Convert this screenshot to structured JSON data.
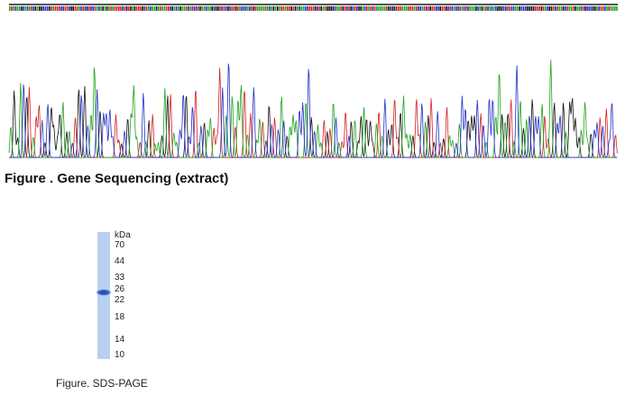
{
  "figure1": {
    "caption": "Figure . Gene Sequencing (extract)"
  },
  "figure2": {
    "unit": "kDa",
    "markers": [
      "70",
      "44",
      "33",
      "26",
      "22",
      "18",
      "14",
      "10"
    ],
    "caption": "Figure. SDS-PAGE"
  }
}
